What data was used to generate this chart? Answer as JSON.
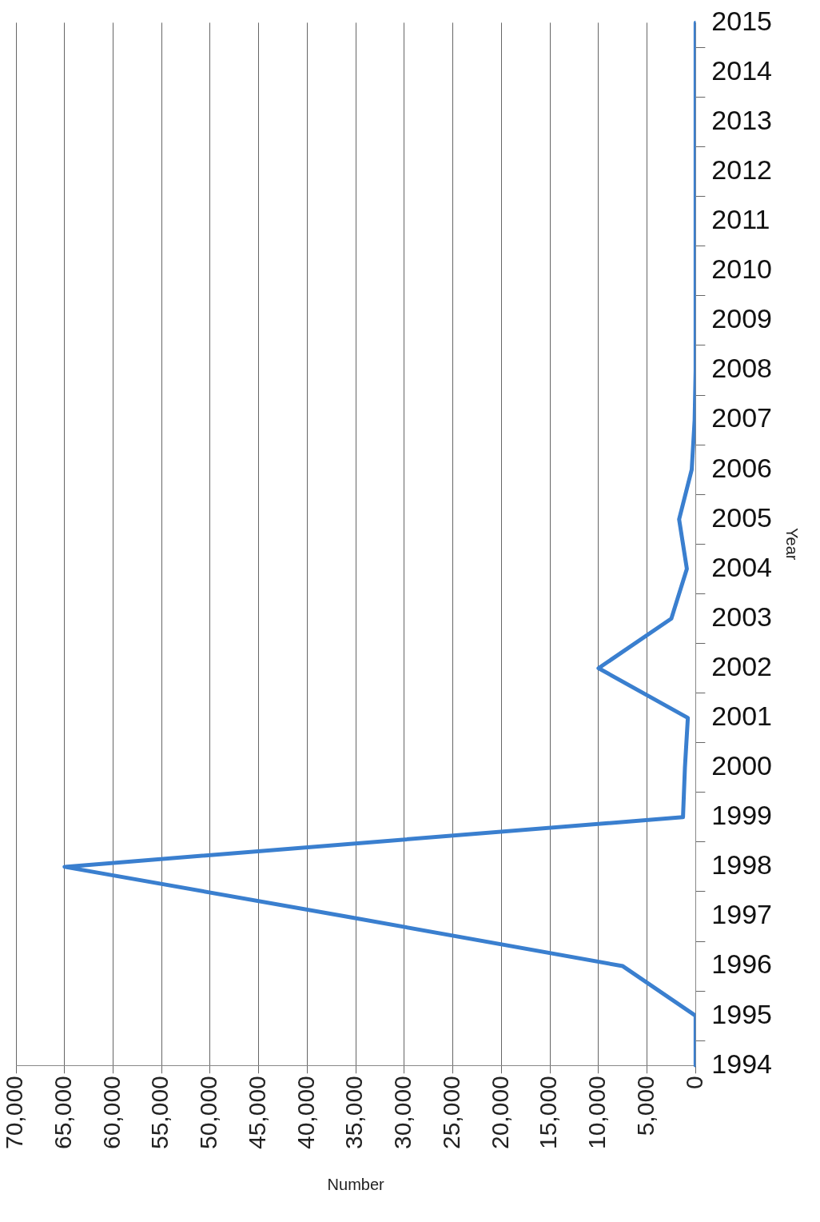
{
  "chart_data": {
    "type": "line",
    "orientation": "horizontal",
    "xlabel": "Number",
    "ylabel": "Year",
    "categories": [
      "2015",
      "2014",
      "2013",
      "2012",
      "2011",
      "2010",
      "2009",
      "2008",
      "2007",
      "2006",
      "2005",
      "2004",
      "2003",
      "2002",
      "2001",
      "2000",
      "1999",
      "1998",
      "1997",
      "1996",
      "1995",
      "1994"
    ],
    "series": [
      {
        "color": "#3a7fcf",
        "values": [
          0,
          0,
          0,
          0,
          0,
          0,
          0,
          0,
          100,
          400,
          1700,
          900,
          2500,
          10000,
          800,
          1100,
          1300,
          65000,
          36000,
          7500,
          0,
          0
        ]
      }
    ],
    "xlim": [
      70000,
      0
    ],
    "xticks": [
      {
        "value": 70000,
        "label": "70,000"
      },
      {
        "value": 65000,
        "label": "65,000"
      },
      {
        "value": 60000,
        "label": "60,000"
      },
      {
        "value": 55000,
        "label": "55,000"
      },
      {
        "value": 50000,
        "label": "50,000"
      },
      {
        "value": 45000,
        "label": "45,000"
      },
      {
        "value": 40000,
        "label": "40,000"
      },
      {
        "value": 35000,
        "label": "35,000"
      },
      {
        "value": 30000,
        "label": "30,000"
      },
      {
        "value": 25000,
        "label": "25,000"
      },
      {
        "value": 20000,
        "label": "20,000"
      },
      {
        "value": 15000,
        "label": "15,000"
      },
      {
        "value": 10000,
        "label": "10,000"
      },
      {
        "value": 5000,
        "label": "5,000"
      },
      0
    ],
    "grid": "x",
    "legend": false,
    "marker": "none",
    "line_style": "solid"
  }
}
